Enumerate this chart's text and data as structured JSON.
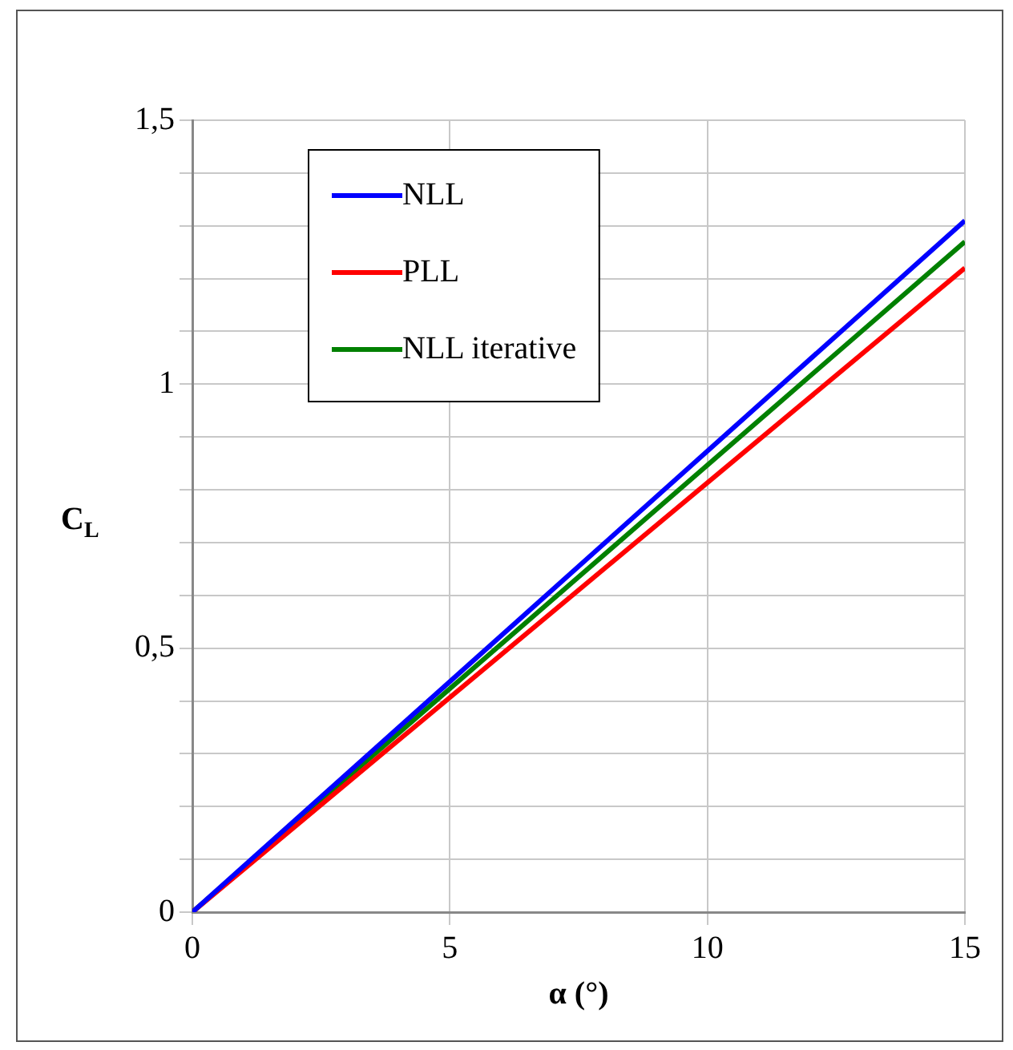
{
  "chart_data": {
    "type": "line",
    "xlabel": "α (°)",
    "ylabel": "C$_{L}$",
    "x": [
      0,
      15
    ],
    "series": [
      {
        "name": "NLL",
        "color": "#0000ff",
        "values": [
          0,
          1.31
        ]
      },
      {
        "name": "PLL",
        "color": "#ff0000",
        "values": [
          0,
          1.22
        ]
      },
      {
        "name": "NLL iterative",
        "color": "#008000",
        "values": [
          0,
          1.27
        ]
      }
    ],
    "xlim": [
      0,
      15
    ],
    "xticks": [
      0,
      5,
      10,
      15
    ],
    "ylim": [
      0,
      1.5
    ],
    "yticks": [
      0,
      {
        "value": 0.1,
        "label": null
      },
      {
        "value": 0.2,
        "label": null
      },
      {
        "value": 0.3,
        "label": null
      },
      {
        "value": 0.4,
        "label": null
      },
      {
        "value": 0.5,
        "label": "0,5"
      },
      {
        "value": 0.6,
        "label": null
      },
      {
        "value": 0.7,
        "label": null
      },
      {
        "value": 0.8,
        "label": null
      },
      {
        "value": 0.9,
        "label": null
      },
      1,
      {
        "value": 1.1,
        "label": null
      },
      {
        "value": 1.2,
        "label": null
      },
      {
        "value": 1.3,
        "label": null
      },
      {
        "value": 1.4,
        "label": null
      },
      {
        "value": 1.5,
        "label": "1,5"
      }
    ],
    "grid": true,
    "legend": "top left",
    "marker": "none",
    "line_style": "solid"
  }
}
